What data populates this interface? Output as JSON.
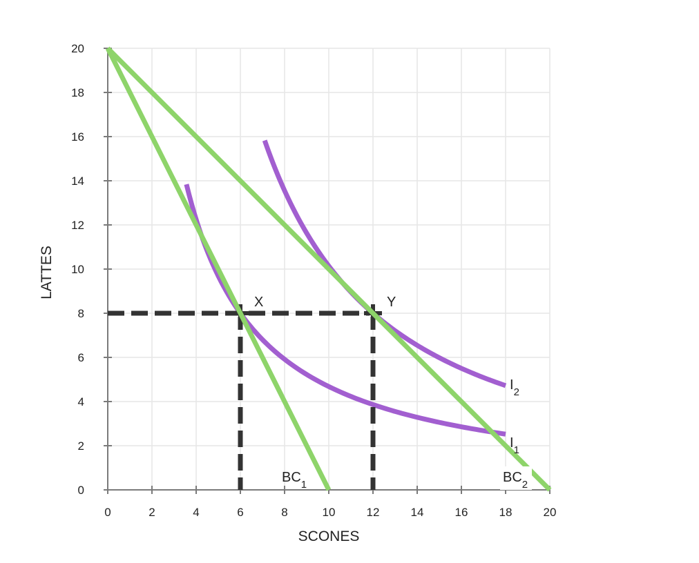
{
  "chart_data": {
    "type": "line",
    "title": "",
    "xlabel": "SCONES",
    "ylabel": "LATTES",
    "xlim": [
      0,
      20
    ],
    "ylim": [
      0,
      20
    ],
    "x_ticks": [
      0,
      2,
      4,
      6,
      8,
      10,
      12,
      14,
      16,
      18,
      20
    ],
    "y_ticks": [
      0,
      2,
      4,
      6,
      8,
      10,
      12,
      14,
      16,
      18,
      20
    ],
    "grid": true,
    "colors": {
      "budget": "#8ed46a",
      "indifference": "#a25fd0",
      "guide": "#333333",
      "grid": "#e6e6e6",
      "axis": "#7a7a7a"
    },
    "series": [
      {
        "name": "BC1",
        "kind": "budget",
        "label_main": "BC",
        "label_sub": "1",
        "points": [
          [
            0,
            20
          ],
          [
            10,
            0
          ]
        ]
      },
      {
        "name": "BC2",
        "kind": "budget",
        "label_main": "BC",
        "label_sub": "2",
        "points": [
          [
            0,
            20
          ],
          [
            20,
            0
          ]
        ]
      },
      {
        "name": "I1",
        "kind": "indifference",
        "label_main": "I",
        "label_sub": "1",
        "xk": 48,
        "x_range": [
          3.56,
          18
        ],
        "power": 1.05
      },
      {
        "name": "I2",
        "kind": "indifference",
        "label_main": "I",
        "label_sub": "2",
        "xk": 96,
        "x_range": [
          7.1,
          18
        ],
        "power": 1.3
      }
    ],
    "points": [
      {
        "name": "X",
        "label": "X",
        "x": 6,
        "y": 8
      },
      {
        "name": "Y",
        "label": "Y",
        "x": 12,
        "y": 8
      }
    ]
  }
}
